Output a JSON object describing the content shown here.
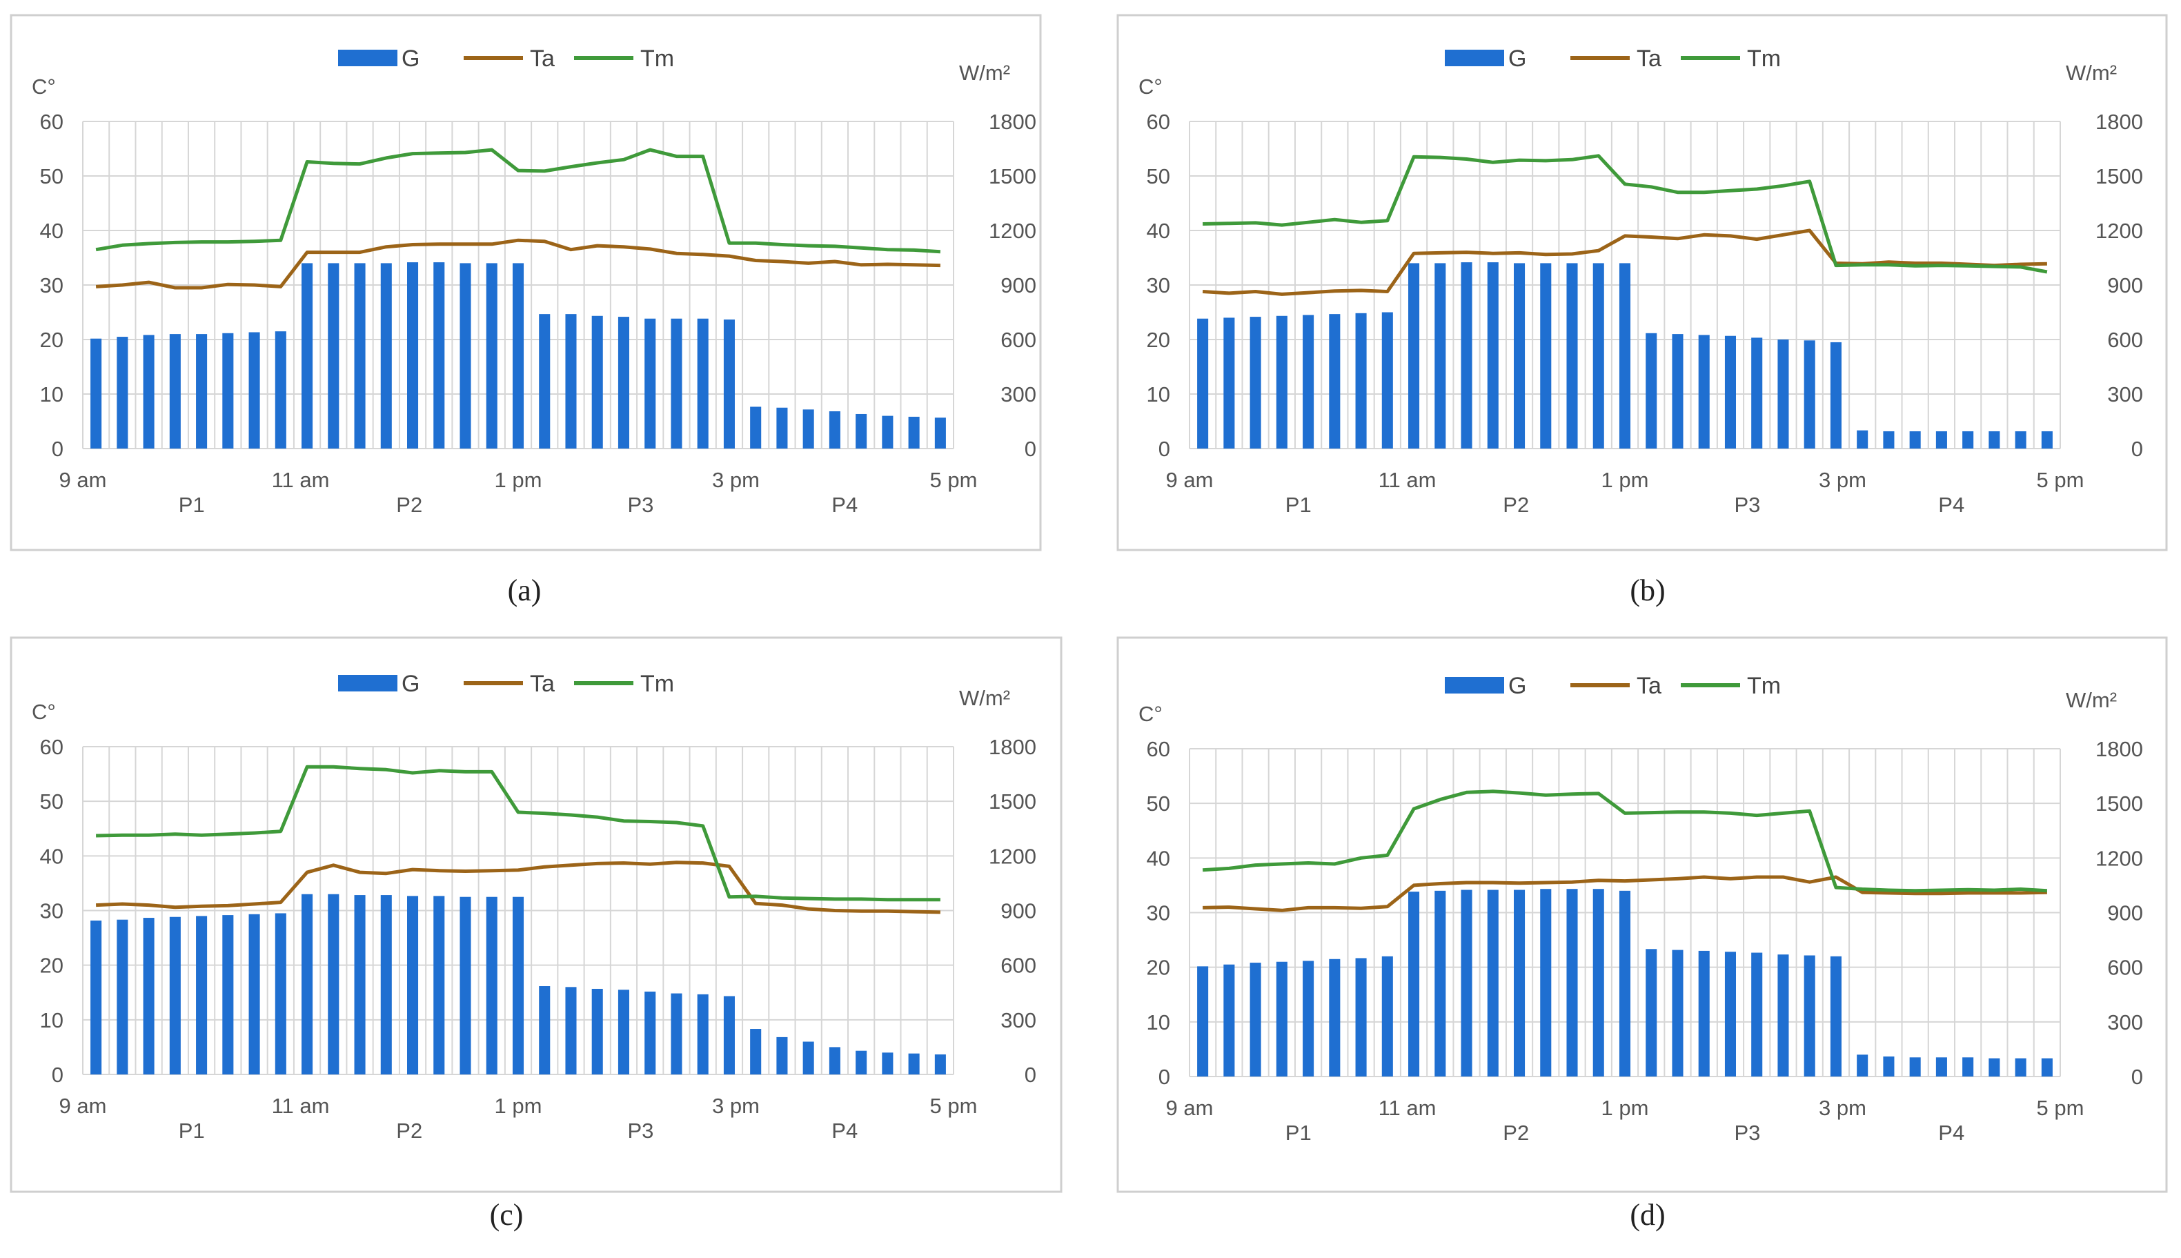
{
  "colors": {
    "G": "#1f6fd1",
    "Ta": "#9c6418",
    "Tm": "#3f9a3a",
    "grid": "#d6d6d6",
    "frame": "#cfcfcf",
    "text": "#555555"
  },
  "legend": {
    "g": "G",
    "ta": "Ta",
    "tm": "Tm"
  },
  "chart_data": [
    {
      "type": "bar+line",
      "caption": "(a)",
      "ylabel_left": "C°",
      "ylabel_right": "W/m²",
      "ylim_left": [
        0,
        60
      ],
      "ylim_right": [
        0,
        1800
      ],
      "yticks_left": [
        "0",
        "10",
        "20",
        "30",
        "40",
        "50",
        "60"
      ],
      "yticks_right": [
        "0",
        "300",
        "600",
        "900",
        "1200",
        "1500",
        "1800"
      ],
      "time_labels": [
        "9 am",
        "11 am",
        "1 pm",
        "3 pm",
        "5 pm"
      ],
      "period_labels": [
        "P1",
        "P2",
        "P3",
        "P4"
      ],
      "series": [
        {
          "name": "G",
          "axis": "right",
          "type": "bar",
          "values": [
            605,
            615,
            625,
            630,
            630,
            635,
            640,
            645,
            1020,
            1020,
            1020,
            1020,
            1025,
            1025,
            1020,
            1020,
            1020,
            740,
            740,
            730,
            725,
            715,
            715,
            715,
            710,
            230,
            225,
            215,
            205,
            190,
            180,
            175,
            170
          ]
        },
        {
          "name": "Ta",
          "axis": "left",
          "type": "line",
          "values": [
            29.7,
            30,
            30.5,
            29.5,
            29.5,
            30.1,
            30,
            29.7,
            36,
            36,
            36,
            37,
            37.4,
            37.5,
            37.5,
            37.5,
            38.2,
            38,
            36.5,
            37.2,
            37,
            36.6,
            35.8,
            35.6,
            35.3,
            34.5,
            34.3,
            34,
            34.3,
            33.7,
            33.8,
            33.7,
            33.6
          ]
        },
        {
          "name": "Tm",
          "axis": "left",
          "type": "line",
          "values": [
            36.5,
            37.3,
            37.6,
            37.8,
            37.9,
            37.9,
            38,
            38.2,
            52.6,
            52.3,
            52.2,
            53.3,
            54.1,
            54.2,
            54.3,
            54.8,
            51,
            50.9,
            51.7,
            52.4,
            53,
            54.8,
            53.6,
            53.6,
            37.7,
            37.7,
            37.4,
            37.2,
            37.1,
            36.8,
            36.5,
            36.4,
            36.1
          ]
        }
      ]
    },
    {
      "type": "bar+line",
      "caption": "(b)",
      "ylabel_left": "C°",
      "ylabel_right": "W/m²",
      "ylim_left": [
        0,
        60
      ],
      "ylim_right": [
        0,
        1800
      ],
      "yticks_left": [
        "0",
        "10",
        "20",
        "30",
        "40",
        "50",
        "60"
      ],
      "yticks_right": [
        "0",
        "300",
        "600",
        "900",
        "1200",
        "1500",
        "1800"
      ],
      "time_labels": [
        "9 am",
        "11 am",
        "1 pm",
        "3 pm",
        "5 pm"
      ],
      "period_labels": [
        "P1",
        "P2",
        "P3",
        "P4"
      ],
      "series": [
        {
          "name": "G",
          "axis": "right",
          "type": "bar",
          "values": [
            715,
            720,
            725,
            730,
            735,
            740,
            745,
            750,
            1020,
            1020,
            1025,
            1025,
            1020,
            1020,
            1020,
            1020,
            1020,
            635,
            630,
            625,
            620,
            610,
            600,
            595,
            585,
            100,
            95,
            95,
            95,
            95,
            95,
            95,
            95
          ]
        },
        {
          "name": "Ta",
          "axis": "left",
          "type": "line",
          "values": [
            28.8,
            28.5,
            28.8,
            28.3,
            28.6,
            28.9,
            29,
            28.8,
            35.8,
            35.9,
            36,
            35.8,
            35.9,
            35.6,
            35.7,
            36.3,
            39,
            38.8,
            38.5,
            39.2,
            39,
            38.4,
            39.2,
            40,
            34,
            33.9,
            34.2,
            34,
            34,
            33.8,
            33.6,
            33.8,
            33.9
          ]
        },
        {
          "name": "Tm",
          "axis": "left",
          "type": "line",
          "values": [
            41.2,
            41.3,
            41.4,
            41,
            41.5,
            42,
            41.5,
            41.8,
            53.5,
            53.4,
            53.1,
            52.5,
            52.9,
            52.8,
            53,
            53.7,
            48.5,
            48,
            47,
            47,
            47.3,
            47.6,
            48.2,
            49,
            33.6,
            33.7,
            33.7,
            33.5,
            33.6,
            33.5,
            33.4,
            33.3,
            32.4
          ]
        }
      ]
    },
    {
      "type": "bar+line",
      "caption": "(c)",
      "ylabel_left": "C°",
      "ylabel_right": "W/m²",
      "ylim_left": [
        0,
        60
      ],
      "ylim_right": [
        0,
        1800
      ],
      "yticks_left": [
        "0",
        "10",
        "20",
        "30",
        "40",
        "50",
        "60"
      ],
      "yticks_right": [
        "0",
        "300",
        "600",
        "900",
        "1200",
        "1500",
        "1800"
      ],
      "time_labels": [
        "9 am",
        "11 am",
        "1 pm",
        "3 pm",
        "5 pm"
      ],
      "period_labels": [
        "P1",
        "P2",
        "P3",
        "P4"
      ],
      "series": [
        {
          "name": "G",
          "axis": "right",
          "type": "bar",
          "values": [
            845,
            850,
            860,
            865,
            870,
            875,
            880,
            885,
            990,
            990,
            985,
            985,
            980,
            980,
            975,
            975,
            975,
            485,
            480,
            470,
            465,
            455,
            445,
            440,
            430,
            250,
            205,
            180,
            150,
            130,
            120,
            115,
            110
          ]
        },
        {
          "name": "Ta",
          "axis": "left",
          "type": "line",
          "values": [
            31,
            31.2,
            31,
            30.6,
            30.8,
            30.9,
            31.2,
            31.5,
            37,
            38.3,
            37,
            36.8,
            37.5,
            37.3,
            37.2,
            37.3,
            37.4,
            38,
            38.3,
            38.6,
            38.7,
            38.5,
            38.8,
            38.7,
            38.1,
            31.3,
            31,
            30.3,
            30,
            29.9,
            29.9,
            29.8,
            29.7
          ]
        },
        {
          "name": "Tm",
          "axis": "left",
          "type": "line",
          "values": [
            43.7,
            43.8,
            43.8,
            44,
            43.8,
            44,
            44.2,
            44.5,
            56.3,
            56.3,
            56,
            55.8,
            55.2,
            55.6,
            55.4,
            55.4,
            48,
            47.8,
            47.5,
            47.1,
            46.4,
            46.3,
            46.1,
            45.5,
            32.5,
            32.6,
            32.3,
            32.2,
            32.1,
            32.1,
            32,
            32,
            32
          ]
        }
      ]
    },
    {
      "type": "bar+line",
      "caption": "(d)",
      "ylabel_left": "C°",
      "ylabel_right": "W/m²",
      "ylim_left": [
        0,
        60
      ],
      "ylim_right": [
        0,
        1800
      ],
      "yticks_left": [
        "0",
        "10",
        "20",
        "30",
        "40",
        "50",
        "60"
      ],
      "yticks_right": [
        "0",
        "300",
        "600",
        "900",
        "1200",
        "1500",
        "1800"
      ],
      "time_labels": [
        "9 am",
        "11 am",
        "1 pm",
        "3 pm",
        "5 pm"
      ],
      "period_labels": [
        "P1",
        "P2",
        "P3",
        "P4"
      ],
      "series": [
        {
          "name": "G",
          "axis": "right",
          "type": "bar",
          "values": [
            605,
            615,
            625,
            630,
            635,
            645,
            650,
            660,
            1015,
            1020,
            1025,
            1025,
            1025,
            1030,
            1030,
            1030,
            1020,
            700,
            695,
            690,
            685,
            680,
            670,
            665,
            660,
            120,
            110,
            105,
            105,
            105,
            100,
            100,
            100
          ]
        },
        {
          "name": "Ta",
          "axis": "left",
          "type": "line",
          "values": [
            30.9,
            31,
            30.7,
            30.4,
            30.9,
            30.9,
            30.8,
            31.1,
            35,
            35.3,
            35.5,
            35.5,
            35.4,
            35.5,
            35.6,
            35.9,
            35.8,
            36,
            36.2,
            36.5,
            36.2,
            36.5,
            36.5,
            35.6,
            36.5,
            33.7,
            33.6,
            33.5,
            33.5,
            33.6,
            33.6,
            33.6,
            33.7
          ]
        },
        {
          "name": "Tm",
          "axis": "left",
          "type": "line",
          "values": [
            37.8,
            38.1,
            38.7,
            38.9,
            39.1,
            38.9,
            40,
            40.5,
            49,
            50.7,
            52,
            52.2,
            51.9,
            51.5,
            51.7,
            51.8,
            48.2,
            48.3,
            48.4,
            48.4,
            48.2,
            47.8,
            48.2,
            48.6,
            34.6,
            34.3,
            34.1,
            34,
            34.1,
            34.2,
            34.1,
            34.3,
            34
          ]
        }
      ]
    }
  ]
}
